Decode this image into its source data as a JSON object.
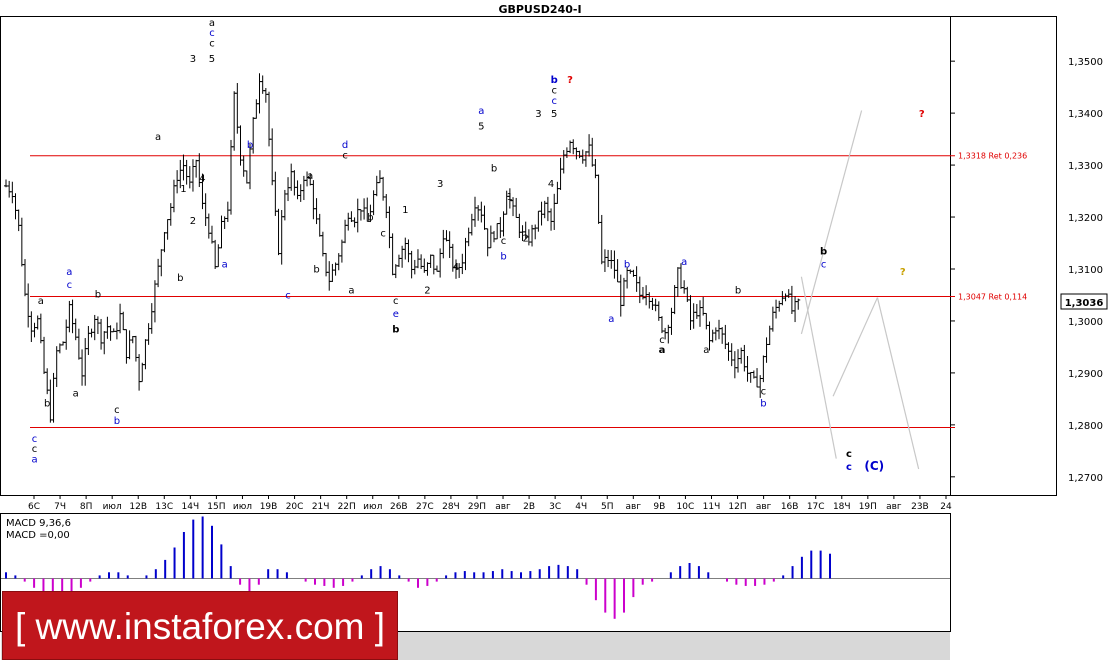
{
  "chart_data": {
    "type": "candlestick",
    "title": "GBPUSD240-I",
    "current_price": "1,3036",
    "y_ticks": [
      "1,3500",
      "1,3400",
      "1,3300",
      "1,3200",
      "1,3100",
      "1,3000",
      "1,2900",
      "1,2800",
      "1,2700"
    ],
    "ylim": [
      1.2665,
      1.3585
    ],
    "x_ticks": [
      "6C",
      "7Ч",
      "8П",
      "июл",
      "12В",
      "13С",
      "14Ч",
      "15П",
      "июл",
      "19В",
      "20С",
      "21Ч",
      "22П",
      "июл",
      "26В",
      "27С",
      "28Ч",
      "29П",
      "авг",
      "2В",
      "3С",
      "4Ч",
      "5П",
      "авг",
      "9В",
      "10С",
      "11Ч",
      "12П",
      "авг",
      "16В",
      "17С",
      "18Ч",
      "19П",
      "авг",
      "23В",
      "24"
    ],
    "horizontal_levels": [
      {
        "value": 1.3318,
        "label": "1,3318 Ret 0,236",
        "color": "#e00000"
      },
      {
        "value": 1.3047,
        "label": "1,3047 Ret 0,114",
        "color": "#e00000"
      },
      {
        "value": 1.2795,
        "label": "",
        "color": "#e00000"
      }
    ],
    "price_path": [
      [
        0,
        1.326
      ],
      [
        2,
        1.325
      ],
      [
        4,
        1.318
      ],
      [
        6,
        1.305
      ],
      [
        8,
        1.299
      ],
      [
        10,
        1.3
      ],
      [
        12,
        1.29
      ],
      [
        14,
        1.282
      ],
      [
        16,
        1.294
      ],
      [
        18,
        1.296
      ],
      [
        20,
        1.302
      ],
      [
        22,
        1.297
      ],
      [
        24,
        1.29
      ],
      [
        26,
        1.297
      ],
      [
        28,
        1.301
      ],
      [
        30,
        1.297
      ],
      [
        32,
        1.299
      ],
      [
        34,
        1.297
      ],
      [
        36,
        1.301
      ],
      [
        38,
        1.294
      ],
      [
        40,
        1.297
      ],
      [
        42,
        1.289
      ],
      [
        44,
        1.296
      ],
      [
        46,
        1.303
      ],
      [
        48,
        1.31
      ],
      [
        50,
        1.318
      ],
      [
        52,
        1.322
      ],
      [
        54,
        1.328
      ],
      [
        56,
        1.33
      ],
      [
        58,
        1.326
      ],
      [
        60,
        1.331
      ],
      [
        62,
        1.322
      ],
      [
        64,
        1.318
      ],
      [
        66,
        1.31
      ],
      [
        68,
        1.318
      ],
      [
        70,
        1.322
      ],
      [
        72,
        1.343
      ],
      [
        74,
        1.332
      ],
      [
        76,
        1.327
      ],
      [
        78,
        1.338
      ],
      [
        80,
        1.347
      ],
      [
        82,
        1.344
      ],
      [
        84,
        1.326
      ],
      [
        86,
        1.314
      ],
      [
        88,
        1.325
      ],
      [
        90,
        1.328
      ],
      [
        92,
        1.323
      ],
      [
        94,
        1.328
      ],
      [
        96,
        1.326
      ],
      [
        98,
        1.319
      ],
      [
        100,
        1.312
      ],
      [
        102,
        1.308
      ],
      [
        104,
        1.311
      ],
      [
        106,
        1.315
      ],
      [
        108,
        1.321
      ],
      [
        110,
        1.32
      ],
      [
        112,
        1.322
      ],
      [
        114,
        1.319
      ],
      [
        116,
        1.324
      ],
      [
        118,
        1.327
      ],
      [
        120,
        1.322
      ],
      [
        122,
        1.31
      ],
      [
        124,
        1.313
      ],
      [
        126,
        1.315
      ],
      [
        128,
        1.31
      ],
      [
        130,
        1.312
      ],
      [
        132,
        1.309
      ],
      [
        134,
        1.312
      ],
      [
        136,
        1.309
      ],
      [
        138,
        1.317
      ],
      [
        140,
        1.313
      ],
      [
        142,
        1.309
      ],
      [
        144,
        1.312
      ],
      [
        146,
        1.318
      ],
      [
        148,
        1.323
      ],
      [
        150,
        1.321
      ],
      [
        152,
        1.315
      ],
      [
        154,
        1.317
      ],
      [
        156,
        1.318
      ],
      [
        158,
        1.325
      ],
      [
        160,
        1.321
      ],
      [
        162,
        1.318
      ],
      [
        164,
        1.315
      ],
      [
        166,
        1.317
      ],
      [
        168,
        1.32
      ],
      [
        170,
        1.322
      ],
      [
        172,
        1.319
      ],
      [
        174,
        1.325
      ],
      [
        176,
        1.332
      ],
      [
        178,
        1.335
      ],
      [
        180,
        1.333
      ],
      [
        182,
        1.332
      ],
      [
        184,
        1.333
      ],
      [
        186,
        1.327
      ],
      [
        188,
        1.311
      ],
      [
        190,
        1.312
      ],
      [
        192,
        1.31
      ],
      [
        194,
        1.304
      ],
      [
        196,
        1.309
      ],
      [
        198,
        1.308
      ],
      [
        200,
        1.305
      ],
      [
        202,
        1.306
      ],
      [
        204,
        1.304
      ],
      [
        206,
        1.3
      ],
      [
        208,
        1.298
      ],
      [
        210,
        1.302
      ],
      [
        212,
        1.309
      ],
      [
        214,
        1.306
      ],
      [
        216,
        1.3
      ],
      [
        218,
        1.302
      ],
      [
        220,
        1.301
      ],
      [
        222,
        1.296
      ],
      [
        224,
        1.299
      ],
      [
        226,
        1.297
      ],
      [
        228,
        1.294
      ],
      [
        230,
        1.292
      ],
      [
        232,
        1.294
      ],
      [
        234,
        1.29
      ],
      [
        236,
        1.288
      ],
      [
        238,
        1.289
      ],
      [
        240,
        1.296
      ],
      [
        242,
        1.301
      ],
      [
        244,
        1.304
      ],
      [
        246,
        1.306
      ],
      [
        248,
        1.302
      ],
      [
        250,
        1.303
      ]
    ],
    "forecast_lines": [
      {
        "from": [
          251,
          1.2975
        ],
        "to": [
          270,
          1.3405
        ],
        "color": "#c8c8c8"
      },
      {
        "from": [
          251,
          1.3085
        ],
        "to": [
          262,
          1.2735
        ],
        "color": "#c8c8c8"
      },
      {
        "from": [
          261,
          1.2855
        ],
        "to": [
          275,
          1.3045
        ],
        "color": "#c8c8c8"
      },
      {
        "from": [
          275,
          1.3045
        ],
        "to": [
          288,
          1.2715
        ],
        "color": "#c8c8c8"
      }
    ],
    "wave_labels": [
      {
        "text": "c",
        "x": 9,
        "y": 1.2767,
        "color": "blue"
      },
      {
        "text": "c",
        "x": 9,
        "y": 1.2748,
        "color": "black"
      },
      {
        "text": "a",
        "x": 9,
        "y": 1.2728,
        "color": "blue"
      },
      {
        "text": "a",
        "x": 11,
        "y": 1.3033,
        "color": "black"
      },
      {
        "text": "b",
        "x": 13,
        "y": 1.2835,
        "color": "black"
      },
      {
        "text": "a",
        "x": 20,
        "y": 1.3088,
        "color": "blue"
      },
      {
        "text": "c",
        "x": 20,
        "y": 1.3063,
        "color": "blue"
      },
      {
        "text": "a",
        "x": 22,
        "y": 1.2855,
        "color": "black"
      },
      {
        "text": "b",
        "x": 29,
        "y": 1.3045,
        "color": "black"
      },
      {
        "text": "c",
        "x": 35,
        "y": 1.2823,
        "color": "black"
      },
      {
        "text": "b",
        "x": 35,
        "y": 1.2802,
        "color": "blue"
      },
      {
        "text": "a",
        "x": 48,
        "y": 1.3348,
        "color": "black"
      },
      {
        "text": "1",
        "x": 56,
        "y": 1.3248,
        "color": "black"
      },
      {
        "text": "2",
        "x": 59,
        "y": 1.3187,
        "color": "black"
      },
      {
        "text": "b",
        "x": 55,
        "y": 1.3077,
        "color": "black"
      },
      {
        "text": "3",
        "x": 59,
        "y": 1.3498,
        "color": "black"
      },
      {
        "text": "4",
        "x": 62,
        "y": 1.3268,
        "color": "black"
      },
      {
        "text": "a",
        "x": 65,
        "y": 1.3568,
        "color": "black"
      },
      {
        "text": "c",
        "x": 65,
        "y": 1.3548,
        "color": "blue"
      },
      {
        "text": "c",
        "x": 65,
        "y": 1.3528,
        "color": "black"
      },
      {
        "text": "5",
        "x": 65,
        "y": 1.3498,
        "color": "black"
      },
      {
        "text": "b",
        "x": 77,
        "y": 1.3333,
        "color": "blue"
      },
      {
        "text": "a",
        "x": 69,
        "y": 1.3103,
        "color": "blue"
      },
      {
        "text": "a",
        "x": 96,
        "y": 1.3273,
        "color": "black"
      },
      {
        "text": "b",
        "x": 98,
        "y": 1.3093,
        "color": "black"
      },
      {
        "text": "c",
        "x": 89,
        "y": 1.3043,
        "color": "blue"
      },
      {
        "text": "d",
        "x": 107,
        "y": 1.3333,
        "color": "blue"
      },
      {
        "text": "c",
        "x": 107,
        "y": 1.3313,
        "color": "black"
      },
      {
        "text": "b",
        "x": 115,
        "y": 1.3193,
        "color": "black"
      },
      {
        "text": "a",
        "x": 109,
        "y": 1.3053,
        "color": "black"
      },
      {
        "text": "c",
        "x": 119,
        "y": 1.3163,
        "color": "black"
      },
      {
        "text": "1",
        "x": 126,
        "y": 1.3208,
        "color": "black"
      },
      {
        "text": "c",
        "x": 123,
        "y": 1.3033,
        "color": "black"
      },
      {
        "text": "e",
        "x": 123,
        "y": 1.3008,
        "color": "blue"
      },
      {
        "text": "b",
        "x": 123,
        "y": 1.2978,
        "color": "black",
        "bold": true
      },
      {
        "text": "2",
        "x": 133,
        "y": 1.3053,
        "color": "black"
      },
      {
        "text": "3",
        "x": 137,
        "y": 1.3258,
        "color": "black"
      },
      {
        "text": "4",
        "x": 142,
        "y": 1.3098,
        "color": "black"
      },
      {
        "text": "a",
        "x": 150,
        "y": 1.3398,
        "color": "blue"
      },
      {
        "text": "5",
        "x": 150,
        "y": 1.3368,
        "color": "black"
      },
      {
        "text": "b",
        "x": 154,
        "y": 1.3288,
        "color": "black"
      },
      {
        "text": "1",
        "x": 159,
        "y": 1.3233,
        "color": "black"
      },
      {
        "text": "c",
        "x": 157,
        "y": 1.3148,
        "color": "black"
      },
      {
        "text": "b",
        "x": 157,
        "y": 1.3118,
        "color": "blue"
      },
      {
        "text": "2",
        "x": 164,
        "y": 1.3153,
        "color": "black"
      },
      {
        "text": "3",
        "x": 168,
        "y": 1.3393,
        "color": "black"
      },
      {
        "text": "5",
        "x": 173,
        "y": 1.3393,
        "color": "black"
      },
      {
        "text": "c",
        "x": 173,
        "y": 1.3418,
        "color": "blue"
      },
      {
        "text": "c",
        "x": 173,
        "y": 1.3438,
        "color": "black"
      },
      {
        "text": "b",
        "x": 173,
        "y": 1.3458,
        "color": "blue",
        "bold": true
      },
      {
        "text": "?",
        "x": 178,
        "y": 1.3458,
        "color": "red",
        "bold": true
      },
      {
        "text": "4",
        "x": 172,
        "y": 1.3258,
        "color": "black"
      },
      {
        "text": "b",
        "x": 196,
        "y": 1.3103,
        "color": "blue"
      },
      {
        "text": "a",
        "x": 191,
        "y": 1.2998,
        "color": "blue"
      },
      {
        "text": "c",
        "x": 207,
        "y": 1.2958,
        "color": "black"
      },
      {
        "text": "a",
        "x": 207,
        "y": 1.2938,
        "color": "black",
        "bold": true
      },
      {
        "text": "a",
        "x": 214,
        "y": 1.3108,
        "color": "blue"
      },
      {
        "text": "a",
        "x": 221,
        "y": 1.2938,
        "color": "black"
      },
      {
        "text": "b",
        "x": 231,
        "y": 1.3053,
        "color": "black"
      },
      {
        "text": "c",
        "x": 239,
        "y": 1.2858,
        "color": "black"
      },
      {
        "text": "b",
        "x": 239,
        "y": 1.2835,
        "color": "blue"
      },
      {
        "text": "b",
        "x": 258,
        "y": 1.3128,
        "color": "black",
        "bold": true
      },
      {
        "text": "c",
        "x": 258,
        "y": 1.3103,
        "color": "blue"
      },
      {
        "text": "?",
        "x": 283,
        "y": 1.3088,
        "color": "#c8a000",
        "bold": true
      },
      {
        "text": "?",
        "x": 289,
        "y": 1.3393,
        "color": "red",
        "bold": true
      },
      {
        "text": "c",
        "x": 266,
        "y": 1.2738,
        "color": "black",
        "bold": true
      },
      {
        "text": "c",
        "x": 266,
        "y": 1.2713,
        "color": "blue",
        "bold": true
      },
      {
        "text": "(C)",
        "x": 274,
        "y": 1.2713,
        "color": "blue",
        "bold": true
      }
    ],
    "macd": {
      "label_main": "MACD 9,36,6",
      "label_value": "MACD =0,00",
      "values": [
        0.1,
        0.05,
        -0.05,
        -0.15,
        -0.25,
        -0.3,
        -0.3,
        -0.25,
        -0.15,
        -0.05,
        0.05,
        0.1,
        0.1,
        0.05,
        0.0,
        0.05,
        0.15,
        0.3,
        0.5,
        0.75,
        0.95,
        1.0,
        0.85,
        0.55,
        0.2,
        -0.1,
        -0.25,
        -0.1,
        0.15,
        0.15,
        0.1,
        0.0,
        -0.05,
        -0.1,
        -0.12,
        -0.15,
        -0.12,
        -0.05,
        0.05,
        0.15,
        0.2,
        0.15,
        0.05,
        -0.05,
        -0.15,
        -0.12,
        -0.05,
        0.05,
        0.1,
        0.12,
        0.1,
        0.1,
        0.12,
        0.15,
        0.12,
        0.1,
        0.12,
        0.15,
        0.2,
        0.22,
        0.2,
        0.15,
        -0.1,
        -0.35,
        -0.55,
        -0.65,
        -0.55,
        -0.3,
        -0.1,
        -0.05,
        0.0,
        0.1,
        0.2,
        0.25,
        0.2,
        0.1,
        0.0,
        -0.05,
        -0.1,
        -0.12,
        -0.12,
        -0.1,
        -0.05,
        0.05,
        0.2,
        0.35,
        0.45,
        0.45,
        0.4
      ]
    },
    "watermark_text": "[ www.instaforex.com ]"
  }
}
